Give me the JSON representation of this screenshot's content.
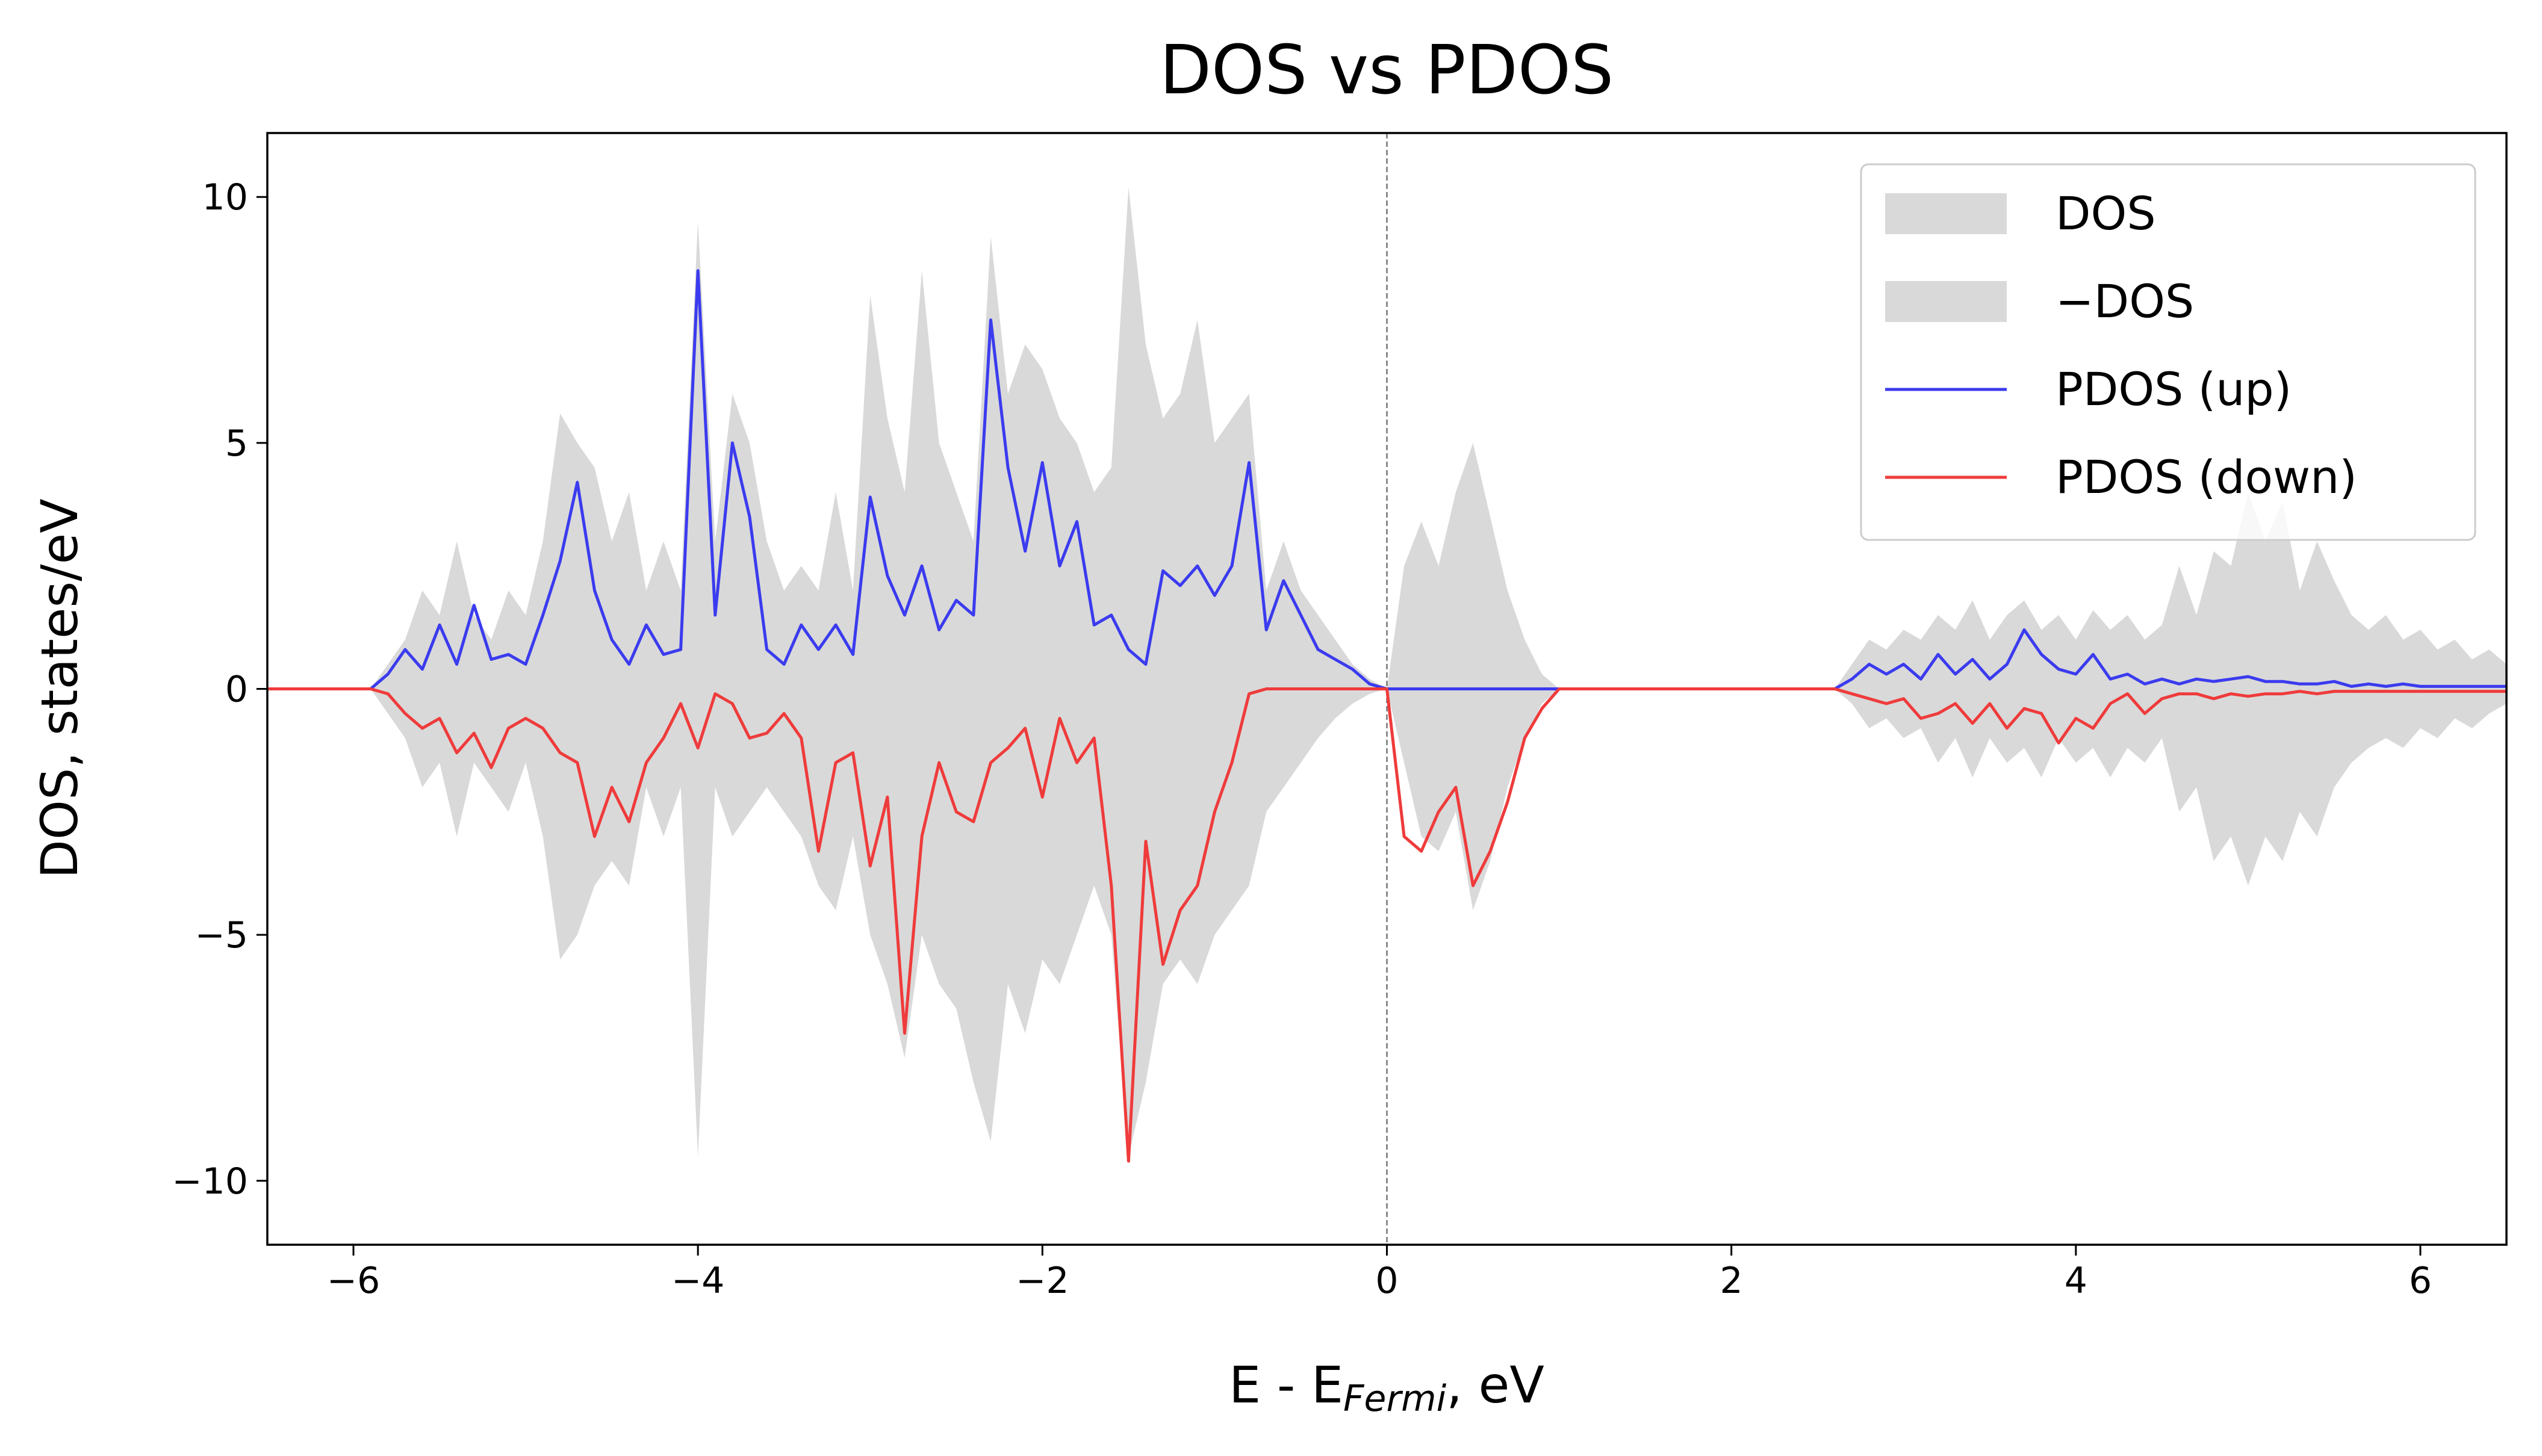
{
  "chart_data": {
    "type": "line",
    "title": "DOS vs PDOS",
    "xlabel": {
      "main": "E - E",
      "sub": "Fermi",
      "tail": ", eV"
    },
    "ylabel": "DOS, states/eV",
    "xlim": [
      -6.5,
      6.5
    ],
    "ylim": [
      -11.3,
      11.3
    ],
    "xticks": [
      {
        "value": -6,
        "label": "−6"
      },
      {
        "value": -4,
        "label": "−4"
      },
      {
        "value": -2,
        "label": "−2"
      },
      0,
      2,
      4,
      6
    ],
    "yticks": [
      {
        "value": -10,
        "label": "−10"
      },
      {
        "value": -5,
        "label": "−5"
      },
      0,
      5,
      10
    ],
    "vline": 0,
    "legend": "upper right",
    "x": [
      -6.5,
      -6.4,
      -6.3,
      -6.2,
      -6.1,
      -6.0,
      -5.9,
      -5.8,
      -5.7,
      -5.6,
      -5.5,
      -5.4,
      -5.3,
      -5.2,
      -5.1,
      -5.0,
      -4.9,
      -4.8,
      -4.7,
      -4.6,
      -4.5,
      -4.4,
      -4.3,
      -4.2,
      -4.1,
      -4.0,
      -3.9,
      -3.8,
      -3.7,
      -3.6,
      -3.5,
      -3.4,
      -3.3,
      -3.2,
      -3.1,
      -3.0,
      -2.9,
      -2.8,
      -2.7,
      -2.6,
      -2.5,
      -2.4,
      -2.3,
      -2.2,
      -2.1,
      -2.0,
      -1.9,
      -1.8,
      -1.7,
      -1.6,
      -1.5,
      -1.4,
      -1.3,
      -1.2,
      -1.1,
      -1.0,
      -0.9,
      -0.8,
      -0.7,
      -0.6,
      -0.5,
      -0.4,
      -0.3,
      -0.2,
      -0.1,
      0.0,
      0.1,
      0.2,
      0.3,
      0.4,
      0.5,
      0.6,
      0.7,
      0.8,
      0.9,
      1.0,
      1.1,
      1.2,
      1.3,
      1.4,
      1.5,
      1.6,
      1.7,
      1.8,
      1.9,
      2.0,
      2.1,
      2.2,
      2.3,
      2.4,
      2.5,
      2.6,
      2.7,
      2.8,
      2.9,
      3.0,
      3.1,
      3.2,
      3.3,
      3.4,
      3.5,
      3.6,
      3.7,
      3.8,
      3.9,
      4.0,
      4.1,
      4.2,
      4.3,
      4.4,
      4.5,
      4.6,
      4.7,
      4.8,
      4.9,
      5.0,
      5.1,
      5.2,
      5.3,
      5.4,
      5.5,
      5.6,
      5.7,
      5.8,
      5.9,
      6.0,
      6.1,
      6.2,
      6.3,
      6.4,
      6.5
    ],
    "series": [
      {
        "name": "DOS",
        "style": "area",
        "color": "#d9d9d9",
        "values": [
          0,
          0,
          0,
          0,
          0,
          0,
          0,
          0.5,
          1,
          2,
          1.5,
          3,
          1.5,
          1,
          2,
          1.5,
          3,
          5.6,
          5,
          4.5,
          3,
          4,
          2,
          3,
          2,
          9.5,
          3,
          6,
          5,
          3,
          2,
          2.5,
          2,
          4,
          2,
          8,
          5.5,
          4,
          8.5,
          5,
          4,
          3,
          9.2,
          6,
          7,
          6.5,
          5.5,
          5,
          4,
          4.5,
          10.2,
          7,
          5.5,
          6,
          7.5,
          5,
          5.5,
          6,
          2,
          3,
          2,
          1.5,
          1,
          0.5,
          0.2,
          0,
          2.5,
          3.4,
          2.5,
          4,
          5,
          3.5,
          2,
          1,
          0.3,
          0,
          0,
          0,
          0,
          0,
          0,
          0,
          0,
          0,
          0,
          0,
          0,
          0,
          0,
          0,
          0,
          0,
          0.5,
          1,
          0.8,
          1.2,
          1,
          1.5,
          1.2,
          1.8,
          1,
          1.5,
          1.8,
          1.2,
          1.5,
          1,
          1.6,
          1.2,
          1.5,
          1,
          1.3,
          2.5,
          1.5,
          2.8,
          2.5,
          4,
          3,
          3.8,
          2,
          3,
          2.2,
          1.5,
          1.2,
          1.5,
          1,
          1.2,
          0.8,
          1,
          0.6,
          0.8,
          0.5
        ]
      },
      {
        "name": "−DOS",
        "style": "area",
        "color": "#d9d9d9",
        "values": [
          0,
          0,
          0,
          0,
          0,
          0,
          0,
          -0.5,
          -1,
          -2,
          -1.5,
          -3,
          -1.5,
          -2,
          -2.5,
          -1.5,
          -3,
          -5.5,
          -5,
          -4,
          -3.5,
          -4,
          -2,
          -3,
          -2,
          -9.5,
          -2,
          -3,
          -2.5,
          -2,
          -2.5,
          -3,
          -4,
          -4.5,
          -3,
          -5,
          -6,
          -7.5,
          -5,
          -6,
          -6.5,
          -8,
          -9.2,
          -6,
          -7,
          -5.5,
          -6,
          -5,
          -4,
          -5,
          -9.5,
          -8,
          -6,
          -5.5,
          -6,
          -5,
          -4.5,
          -4,
          -2.5,
          -2,
          -1.5,
          -1,
          -0.6,
          -0.3,
          -0.1,
          0,
          -1.5,
          -3,
          -3.3,
          -2.5,
          -4.5,
          -3.5,
          -2,
          -1,
          -0.3,
          0,
          0,
          0,
          0,
          0,
          0,
          0,
          0,
          0,
          0,
          0,
          0,
          0,
          0,
          0,
          0,
          0,
          -0.3,
          -0.8,
          -0.6,
          -1,
          -0.8,
          -1.5,
          -1,
          -1.8,
          -1,
          -1.5,
          -1.2,
          -1.8,
          -1,
          -1.5,
          -1.2,
          -1.8,
          -1.2,
          -1.5,
          -1,
          -2.5,
          -2,
          -3.5,
          -3,
          -4,
          -3,
          -3.5,
          -2.5,
          -3,
          -2,
          -1.5,
          -1.2,
          -1,
          -1.2,
          -0.8,
          -1,
          -0.6,
          -0.8,
          -0.5,
          -0.3
        ]
      },
      {
        "name": "PDOS (up)",
        "style": "line",
        "color": "#3b3bef",
        "values": [
          0,
          0,
          0,
          0,
          0,
          0,
          0,
          0.3,
          0.8,
          0.4,
          1.3,
          0.5,
          1.7,
          0.6,
          0.7,
          0.5,
          1.5,
          2.6,
          4.2,
          2,
          1,
          0.5,
          1.3,
          0.7,
          0.8,
          8.5,
          1.5,
          5,
          3.5,
          0.8,
          0.5,
          1.3,
          0.8,
          1.3,
          0.7,
          3.9,
          2.3,
          1.5,
          2.5,
          1.2,
          1.8,
          1.5,
          7.5,
          4.5,
          2.8,
          4.6,
          2.5,
          3.4,
          1.3,
          1.5,
          0.8,
          0.5,
          2.4,
          2.1,
          2.5,
          1.9,
          2.5,
          4.6,
          1.2,
          2.2,
          1.5,
          0.8,
          0.6,
          0.4,
          0.1,
          0,
          0,
          0,
          0,
          0,
          0,
          0,
          0,
          0,
          0,
          0,
          0,
          0,
          0,
          0,
          0,
          0,
          0,
          0,
          0,
          0,
          0,
          0,
          0,
          0,
          0,
          0,
          0.2,
          0.5,
          0.3,
          0.5,
          0.2,
          0.7,
          0.3,
          0.6,
          0.2,
          0.5,
          1.2,
          0.7,
          0.4,
          0.3,
          0.7,
          0.2,
          0.3,
          0.1,
          0.2,
          0.1,
          0.2,
          0.15,
          0.2,
          0.25,
          0.15,
          0.15,
          0.1,
          0.1,
          0.15,
          0.05,
          0.1,
          0.05,
          0.1,
          0.05,
          0.05,
          0.05,
          0.05,
          0.05,
          0.05
        ]
      },
      {
        "name": "PDOS (down)",
        "style": "line",
        "color": "#ef3b3b",
        "values": [
          0,
          0,
          0,
          0,
          0,
          0,
          0,
          -0.1,
          -0.5,
          -0.8,
          -0.6,
          -1.3,
          -0.9,
          -1.6,
          -0.8,
          -0.6,
          -0.8,
          -1.3,
          -1.5,
          -3,
          -2,
          -2.7,
          -1.5,
          -1,
          -0.3,
          -1.2,
          -0.1,
          -0.3,
          -1,
          -0.9,
          -0.5,
          -1,
          -3.3,
          -1.5,
          -1.3,
          -3.6,
          -2.2,
          -7,
          -3,
          -1.5,
          -2.5,
          -2.7,
          -1.5,
          -1.2,
          -0.8,
          -2.2,
          -0.6,
          -1.5,
          -1,
          -4,
          -9.6,
          -3.1,
          -5.6,
          -4.5,
          -4,
          -2.5,
          -1.5,
          -0.1,
          0,
          0,
          0,
          0,
          0,
          0,
          0,
          0,
          -3,
          -3.3,
          -2.5,
          -2,
          -4,
          -3.3,
          -2.3,
          -1,
          -0.4,
          0,
          0,
          0,
          0,
          0,
          0,
          0,
          0,
          0,
          0,
          0,
          0,
          0,
          0,
          0,
          0,
          0,
          -0.1,
          -0.2,
          -0.3,
          -0.2,
          -0.6,
          -0.5,
          -0.3,
          -0.7,
          -0.3,
          -0.8,
          -0.4,
          -0.5,
          -1.1,
          -0.6,
          -0.8,
          -0.3,
          -0.1,
          -0.5,
          -0.2,
          -0.1,
          -0.1,
          -0.2,
          -0.1,
          -0.15,
          -0.1,
          -0.1,
          -0.05,
          -0.1,
          -0.05,
          -0.05,
          -0.05,
          -0.05,
          -0.05,
          -0.05,
          -0.05,
          -0.05,
          -0.05,
          -0.05,
          -0.05
        ]
      }
    ]
  }
}
